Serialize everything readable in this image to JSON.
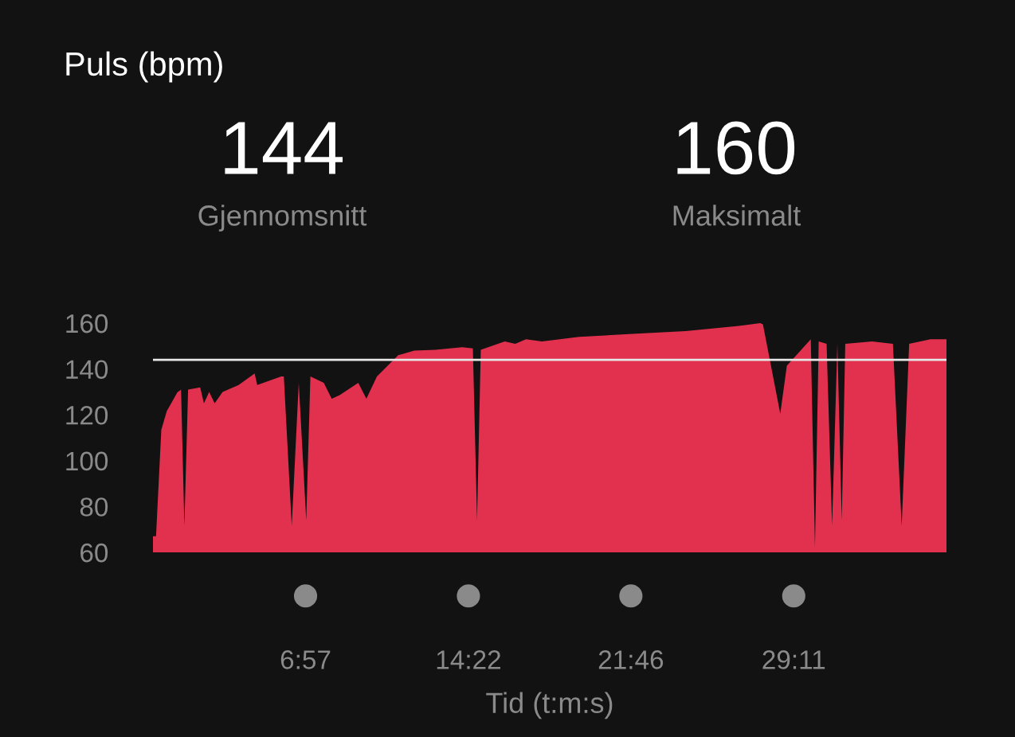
{
  "chart_data": {
    "type": "area",
    "title": "Puls (bpm)",
    "xlabel": "Tid (t:m:s)",
    "annotations": [
      "144",
      "Gjennomsnitt",
      "160",
      "Maksimalt"
    ],
    "x": [
      0,
      0.14,
      0.38,
      0.63,
      1.11,
      1.28,
      1.43,
      1.6,
      2.15,
      2.32,
      2.56,
      2.81,
      3.17,
      3.9,
      4.63,
      4.75,
      5.84,
      5.96,
      6.32,
      6.64,
      6.98,
      7.17,
      7.78,
      8.14,
      8.5,
      9.35,
      9.72,
      10.2,
      11.17,
      11.9,
      12.87,
      14.08,
      14.57,
      14.76,
      14.93,
      16.02,
      16.5,
      16.99,
      17.72,
      19.41,
      21.84,
      24.26,
      26.68,
      27.66,
      27.78,
      28.57,
      28.87,
      29.96,
      30.15,
      30.32,
      30.68,
      30.93,
      31.17,
      31.37,
      31.53,
      32.75,
      33.7,
      34.1,
      34.44,
      35.41,
      36.14
    ],
    "series": [
      {
        "color": "#e2314f",
        "values": [
          67,
          67,
          113.5,
          121.6,
          129.8,
          131,
          71.6,
          131,
          132,
          125,
          130,
          125,
          130,
          133,
          138,
          133,
          136.7,
          136.7,
          71.6,
          134,
          74,
          136.7,
          134,
          127,
          128.6,
          134,
          127,
          136.7,
          146,
          148,
          148.4,
          149.5,
          149,
          74,
          148.4,
          152,
          151,
          153,
          152,
          154,
          155.3,
          156.5,
          158.8,
          160,
          159.5,
          120.5,
          141.4,
          153,
          62.3,
          152,
          151,
          71.6,
          151,
          74,
          151,
          152,
          151,
          71.6,
          151,
          153,
          153
        ]
      }
    ],
    "xlim": [
      0,
      36.14
    ],
    "ylim": [
      60,
      160
    ],
    "xticks": [
      {
        "value": 6.95,
        "label": "6:57"
      },
      {
        "value": 14.367,
        "label": "14:22"
      },
      {
        "value": 21.767,
        "label": "21:46"
      },
      {
        "value": 29.183,
        "label": "29:11"
      }
    ],
    "yticks": [
      60,
      80,
      100,
      120,
      140,
      160
    ],
    "ref_lines": [
      {
        "axis": "y",
        "value": 144,
        "color": "#e6e6e6"
      }
    ],
    "grid": false
  }
}
